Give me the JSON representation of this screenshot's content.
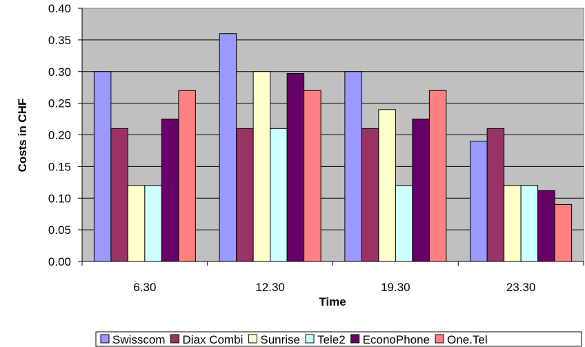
{
  "chart_data": {
    "type": "bar",
    "title": "",
    "xlabel": "Time",
    "ylabel": "Costs in CHF",
    "categories": [
      "6.30",
      "12.30",
      "19.30",
      "23.30"
    ],
    "series": [
      {
        "name": "Swisscom",
        "color": "#9999ff",
        "values": [
          0.3,
          0.36,
          0.3,
          0.19
        ]
      },
      {
        "name": "Diax Combi",
        "color": "#993366",
        "values": [
          0.21,
          0.21,
          0.21,
          0.21
        ]
      },
      {
        "name": "Sunrise",
        "color": "#ffffcc",
        "values": [
          0.12,
          0.3,
          0.24,
          0.12
        ]
      },
      {
        "name": "Tele2",
        "color": "#ccffff",
        "values": [
          0.12,
          0.21,
          0.12,
          0.12
        ]
      },
      {
        "name": "EconoPhone",
        "color": "#660066",
        "values": [
          0.225,
          0.297,
          0.225,
          0.112
        ]
      },
      {
        "name": "One.Tel",
        "color": "#ff8080",
        "values": [
          0.27,
          0.27,
          0.27,
          0.09
        ]
      }
    ],
    "ylim": [
      0,
      0.4
    ],
    "yticks": [
      "0.00",
      "0.05",
      "0.10",
      "0.15",
      "0.20",
      "0.25",
      "0.30",
      "0.35",
      "0.40"
    ],
    "grid": true,
    "plot_background": "#c0c0c0",
    "legend_position": "bottom"
  }
}
